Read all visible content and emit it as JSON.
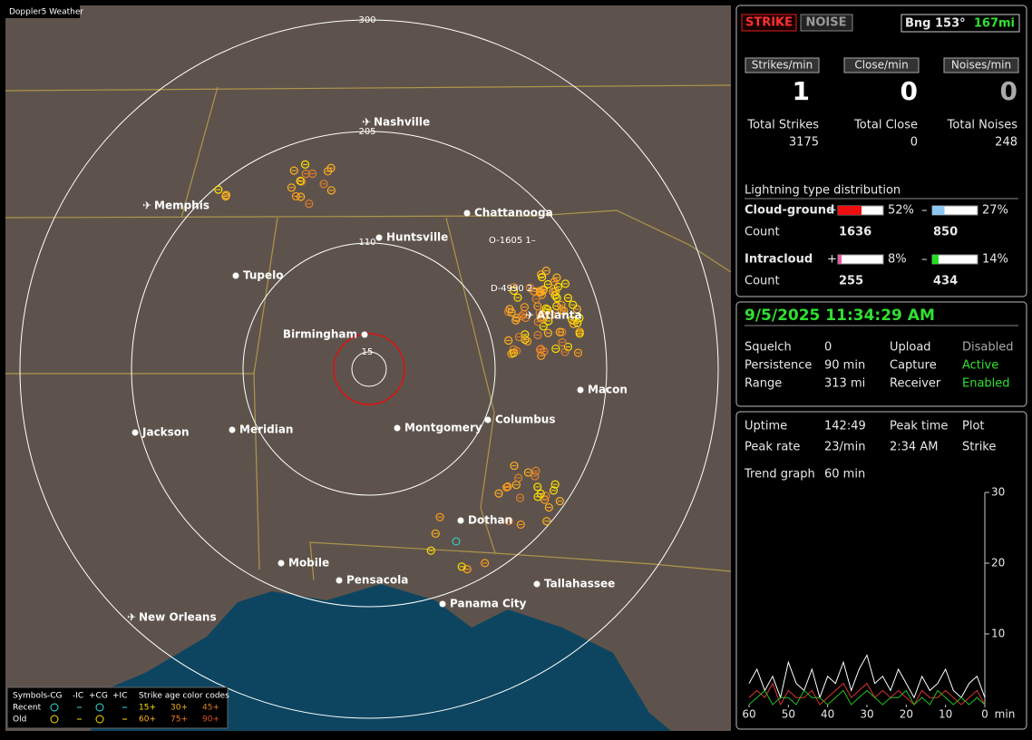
{
  "map": {
    "title": "Doppler5 Weather",
    "range_labels": [
      "300",
      "205",
      "110",
      "15"
    ],
    "cities": [
      "Nashville",
      "Memphis",
      "Chattanooga",
      "Huntsville",
      "Tupelo",
      "Birmingham",
      "Atlanta",
      "Macon",
      "Montgomery",
      "Columbus",
      "Jackson",
      "Meridian",
      "Dothan",
      "Mobile",
      "Pensacola",
      "Tallahassee",
      "Panama City",
      "New Orleans"
    ],
    "sites": [
      "O-1605 1–",
      "D-4990 2–"
    ],
    "legend": {
      "header": [
        "Symbols",
        "-CG",
        "-IC",
        "+CG",
        "+IC",
        "Strike age color codes"
      ],
      "recent": [
        "Recent",
        "15+",
        "30+",
        "45+"
      ],
      "old": [
        "Old",
        "60+",
        "75+",
        "90+"
      ]
    }
  },
  "status": {
    "strike": "STRIKE",
    "noise": "NOISE",
    "bearing": "Bng 153°",
    "distance": "167mi"
  },
  "rates": [
    {
      "label": "Strikes/min",
      "value": 1
    },
    {
      "label": "Close/min",
      "value": 0
    },
    {
      "label": "Noises/min",
      "value": 0
    }
  ],
  "totals": [
    {
      "label": "Total Strikes",
      "value": 3175
    },
    {
      "label": "Total Close",
      "value": 0
    },
    {
      "label": "Total Noises",
      "value": 248
    }
  ],
  "distribution": {
    "title": "Lightning type distribution",
    "count_label": "Count",
    "rows": [
      {
        "label": "Cloud-ground",
        "signs": [
          "+",
          "–"
        ],
        "values": [
          52,
          27
        ],
        "value_labels": [
          "52%",
          "27%"
        ],
        "counts": [
          1636,
          850
        ]
      },
      {
        "label": "Intracloud",
        "signs": [
          "+",
          "–"
        ],
        "values": [
          8,
          14
        ],
        "value_labels": [
          "8%",
          "14%"
        ],
        "counts": [
          255,
          434
        ]
      }
    ]
  },
  "clock": {
    "datetime": "9/5/2025 11:34:29 AM",
    "settings": [
      [
        "Squelch",
        0,
        "Upload",
        "Disabled"
      ],
      [
        "Persistence",
        "90 min",
        "Capture",
        "Active"
      ],
      [
        "Range",
        "313 mi",
        "Receiver",
        "Enabled"
      ]
    ]
  },
  "stats": {
    "rows": [
      [
        "Uptime",
        "142:49",
        "Peak time",
        "Plot"
      ],
      [
        "Peak rate",
        "23/min",
        "2:34 AM",
        "Strike"
      ]
    ],
    "trend_label": "Trend graph",
    "trend_window": "60 min"
  },
  "chart_data": {
    "type": "line",
    "xlabel": "min",
    "xlim": [
      60,
      0
    ],
    "ylim": [
      0,
      30
    ],
    "xticks": [
      60,
      50,
      40,
      30,
      20,
      10,
      0
    ],
    "yticks": [
      10,
      20,
      30
    ],
    "x": [
      60,
      58,
      56,
      54,
      52,
      50,
      48,
      46,
      44,
      42,
      40,
      38,
      36,
      34,
      32,
      30,
      28,
      26,
      24,
      22,
      20,
      18,
      16,
      14,
      12,
      10,
      8,
      6,
      4,
      2,
      0
    ],
    "series": [
      {
        "color": "#ffffff",
        "values": [
          3,
          5,
          2,
          4,
          1,
          6,
          3,
          2,
          5,
          1,
          4,
          3,
          6,
          2,
          5,
          7,
          3,
          4,
          2,
          5,
          3,
          1,
          4,
          2,
          3,
          5,
          2,
          1,
          3,
          4,
          1
        ]
      },
      {
        "color": "#e03030",
        "values": [
          1,
          2,
          1,
          3,
          0,
          2,
          1,
          1,
          2,
          0,
          1,
          2,
          3,
          1,
          2,
          3,
          1,
          2,
          1,
          2,
          1,
          0,
          2,
          1,
          1,
          2,
          1,
          0,
          1,
          2,
          0
        ]
      },
      {
        "color": "#20c020",
        "values": [
          0,
          1,
          2,
          0,
          1,
          1,
          0,
          2,
          1,
          1,
          0,
          1,
          2,
          0,
          1,
          2,
          1,
          0,
          1,
          1,
          2,
          0,
          1,
          0,
          2,
          1,
          0,
          1,
          0,
          1,
          0
        ]
      }
    ]
  }
}
